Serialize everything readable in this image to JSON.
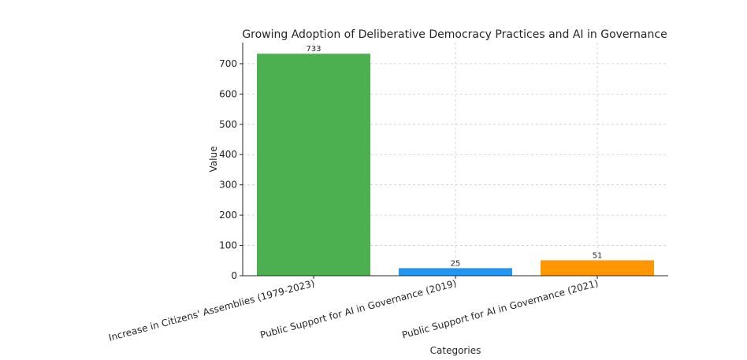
{
  "chart_data": {
    "type": "bar",
    "title": "Growing Adoption of Deliberative Democracy Practices and AI in Governance",
    "xlabel": "Categories",
    "ylabel": "Value",
    "categories": [
      "Increase in Citizens' Assemblies (1979-2023)",
      "Public Support for AI in Governance (2019)",
      "Public Support for AI in Governance (2021)"
    ],
    "values": [
      733,
      25,
      51
    ],
    "data_labels": [
      "733",
      "25",
      "51"
    ],
    "colors": [
      "#4caf50",
      "#2196f3",
      "#ff9800"
    ],
    "ylim": [
      0,
      770
    ],
    "yticks": [
      0,
      100,
      200,
      300,
      400,
      500,
      600,
      700
    ],
    "grid": true
  }
}
